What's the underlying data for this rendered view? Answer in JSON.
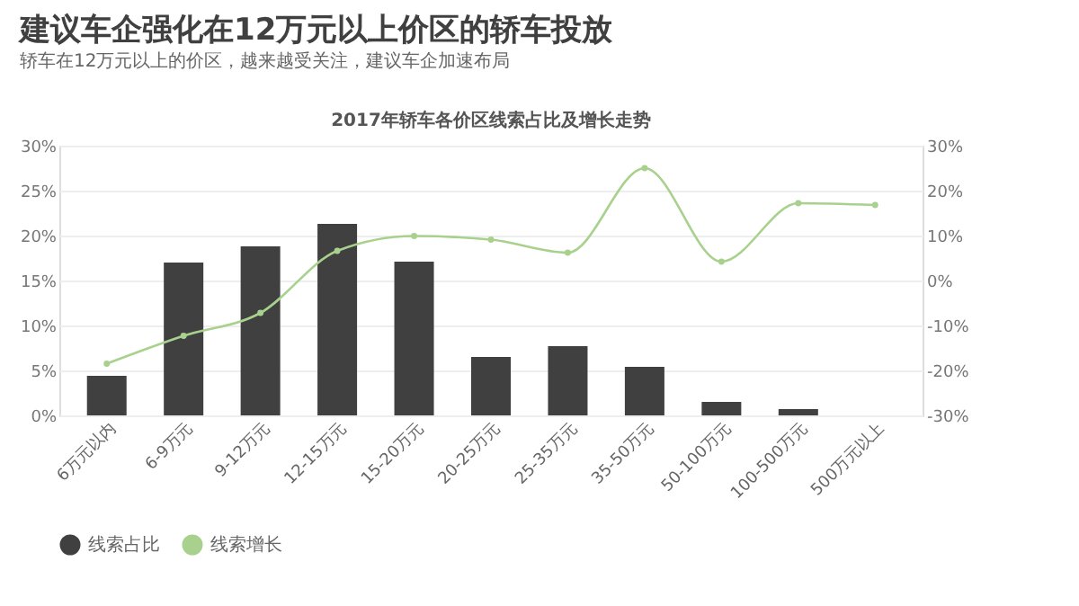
{
  "chart_data": {
    "type": "bar",
    "title": "建议车企强化在12万元以上价区的轿车投放",
    "subtitle": "轿车在12万元以上的价区，越来越受关注，建议车企加速布局",
    "annotations": [
      "2017年轿车各价区线索占比及增长走势"
    ],
    "categories": [
      "6万元以内",
      "6-9万元",
      "9-12万元",
      "12-15万元",
      "15-20万元",
      "20-25万元",
      "25-35万元",
      "35-50万元",
      "50-100万元",
      "100-500万元",
      "500万元以上"
    ],
    "series": [
      {
        "name": "线索占比",
        "color": "#404040",
        "values": [
          4.4,
          17.0,
          18.8,
          21.3,
          17.1,
          6.5,
          7.7,
          5.4,
          1.5,
          0.7,
          0
        ]
      },
      {
        "name": "线索增长",
        "type": "line",
        "axis": "y2",
        "color": "#a9d18e",
        "marker": "circle",
        "values": [
          -18.5,
          -12.3,
          -7.2,
          6.6,
          9.9,
          9.1,
          6.2,
          25.0,
          4.2,
          17.2,
          16.8
        ]
      }
    ],
    "ylim": [
      0,
      30
    ],
    "yticks": [
      {
        "value": 0,
        "label": "0%"
      },
      {
        "value": 5,
        "label": "5%"
      },
      {
        "value": 10,
        "label": "10%"
      },
      {
        "value": 15,
        "label": "15%"
      },
      {
        "value": 20,
        "label": "20%"
      },
      {
        "value": 25,
        "label": "25%"
      },
      {
        "value": 30,
        "label": "30%"
      }
    ],
    "y2lim": [
      -30,
      30
    ],
    "y2ticks": [
      {
        "value": -30,
        "label": "-30%"
      },
      {
        "value": -20,
        "label": "-20%"
      },
      {
        "value": -10,
        "label": "-10%"
      },
      {
        "value": 0,
        "label": "0%"
      },
      {
        "value": 10,
        "label": "10%"
      },
      {
        "value": 20,
        "label": "20%"
      },
      {
        "value": 30,
        "label": "30%"
      }
    ],
    "grid": "y",
    "legend": "bottom"
  }
}
